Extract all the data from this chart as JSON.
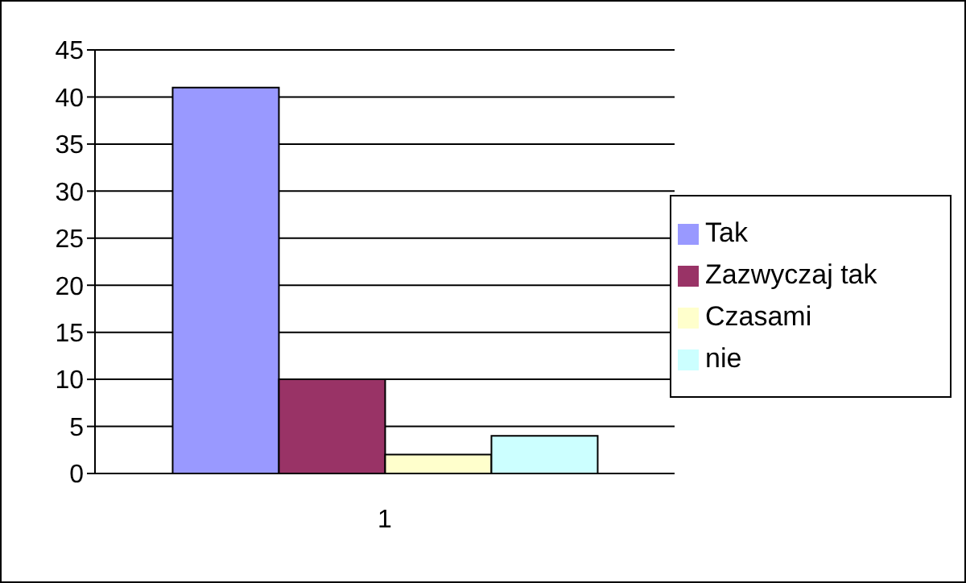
{
  "chart_data": {
    "type": "bar",
    "categories": [
      "1"
    ],
    "series": [
      {
        "name": "Tak",
        "color": "#9999ff",
        "values": [
          41
        ]
      },
      {
        "name": "Zazwyczaj tak",
        "color": "#993366",
        "values": [
          10
        ]
      },
      {
        "name": "Czasami",
        "color": "#ffffcc",
        "values": [
          2
        ]
      },
      {
        "name": "nie",
        "color": "#ccffff",
        "values": [
          4
        ]
      }
    ],
    "ylim": [
      0,
      45
    ],
    "yticks": [
      0,
      5,
      10,
      15,
      20,
      25,
      30,
      35,
      40,
      45
    ],
    "grid": "y",
    "legend": "right"
  }
}
